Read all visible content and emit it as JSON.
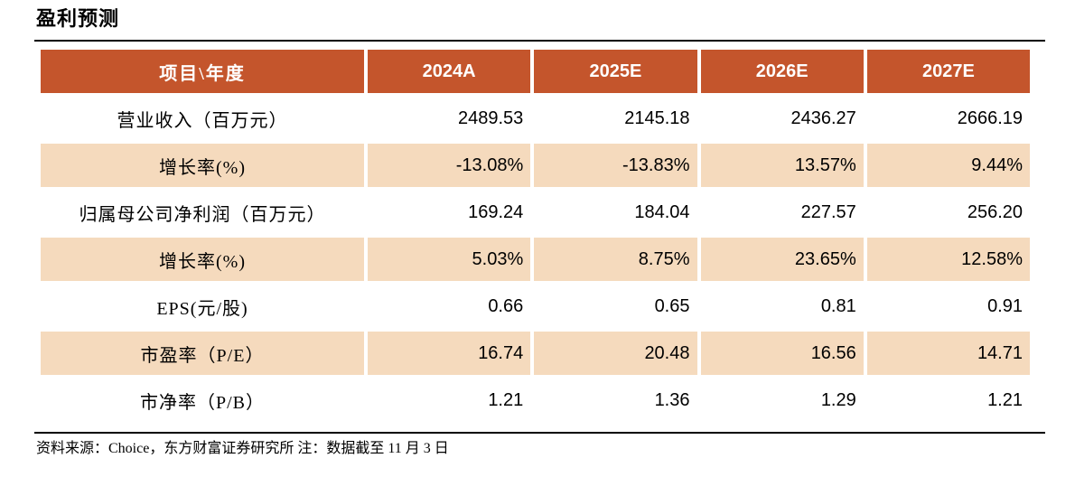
{
  "title": "盈利预测",
  "table": {
    "header": {
      "label": "项目\\年度",
      "years": [
        "2024A",
        "2025E",
        "2026E",
        "2027E"
      ]
    },
    "rows": [
      {
        "label": "营业收入（百万元）",
        "values": [
          "2489.53",
          "2145.18",
          "2436.27",
          "2666.19"
        ]
      },
      {
        "label": "增长率(%)",
        "values": [
          "-13.08%",
          "-13.83%",
          "13.57%",
          "9.44%"
        ]
      },
      {
        "label": "归属母公司净利润（百万元）",
        "values": [
          "169.24",
          "184.04",
          "227.57",
          "256.20"
        ]
      },
      {
        "label": "增长率(%)",
        "values": [
          "5.03%",
          "8.75%",
          "23.65%",
          "12.58%"
        ]
      },
      {
        "label": "EPS(元/股)",
        "values": [
          "0.66",
          "0.65",
          "0.81",
          "0.91"
        ]
      },
      {
        "label": "市盈率（P/E）",
        "values": [
          "16.74",
          "20.48",
          "16.56",
          "14.71"
        ]
      },
      {
        "label": "市净率（P/B）",
        "values": [
          "1.21",
          "1.36",
          "1.29",
          "1.21"
        ]
      }
    ]
  },
  "footer": {
    "source": "资料来源：Choice，东方财富证券研究所  注：数据截至 11 月 3 日"
  },
  "colors": {
    "header_bg": "#C4552C",
    "band_bg": "#F5DABD",
    "header_text": "#FFFFFF",
    "text": "#000000"
  },
  "chart_data": {
    "type": "table",
    "title": "盈利预测",
    "categories": [
      "2024A",
      "2025E",
      "2026E",
      "2027E"
    ],
    "series": [
      {
        "name": "营业收入（百万元）",
        "values": [
          2489.53,
          2145.18,
          2436.27,
          2666.19
        ]
      },
      {
        "name": "营业收入增长率(%)",
        "values": [
          -13.08,
          -13.83,
          13.57,
          9.44
        ]
      },
      {
        "name": "归属母公司净利润（百万元）",
        "values": [
          169.24,
          184.04,
          227.57,
          256.2
        ]
      },
      {
        "name": "净利润增长率(%)",
        "values": [
          5.03,
          8.75,
          23.65,
          12.58
        ]
      },
      {
        "name": "EPS(元/股)",
        "values": [
          0.66,
          0.65,
          0.81,
          0.91
        ]
      },
      {
        "name": "市盈率（P/E）",
        "values": [
          16.74,
          20.48,
          16.56,
          14.71
        ]
      },
      {
        "name": "市净率（P/B）",
        "values": [
          1.21,
          1.36,
          1.29,
          1.21
        ]
      }
    ]
  }
}
